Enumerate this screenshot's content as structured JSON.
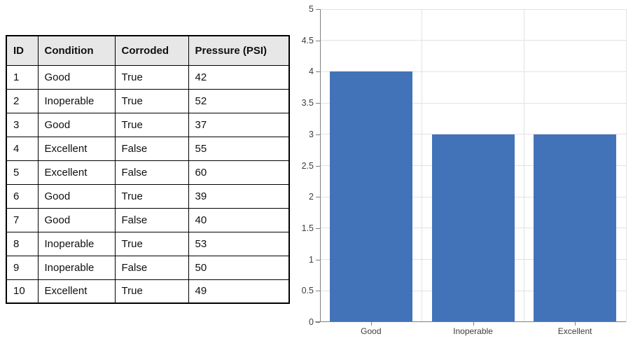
{
  "table": {
    "headers": [
      "ID",
      "Condition",
      "Corroded",
      "Pressure (PSI)"
    ],
    "rows": [
      [
        "1",
        "Good",
        "True",
        "42"
      ],
      [
        "2",
        "Inoperable",
        "True",
        "52"
      ],
      [
        "3",
        "Good",
        "True",
        "37"
      ],
      [
        "4",
        "Excellent",
        "False",
        "55"
      ],
      [
        "5",
        "Excellent",
        "False",
        "60"
      ],
      [
        "6",
        "Good",
        "True",
        "39"
      ],
      [
        "7",
        "Good",
        "False",
        "40"
      ],
      [
        "8",
        "Inoperable",
        "True",
        "53"
      ],
      [
        "9",
        "Inoperable",
        "False",
        "50"
      ],
      [
        "10",
        "Excellent",
        "True",
        "49"
      ]
    ]
  },
  "chart_data": {
    "type": "bar",
    "categories": [
      "Good",
      "Inoperable",
      "Excellent"
    ],
    "values": [
      4,
      3,
      3
    ],
    "title": "",
    "xlabel": "",
    "ylabel": "",
    "ylim": [
      0,
      5
    ],
    "ytick_step": 0.5,
    "grid": true,
    "legend": false,
    "bar_color": "#4273b8"
  },
  "colors": {
    "bar": "#4273b8",
    "gridline": "#e2e2e2",
    "axis": "#7f7f7f",
    "header_bg": "#e7e7e7",
    "table_border": "#000000",
    "tick_label": "#3d3d3d"
  }
}
